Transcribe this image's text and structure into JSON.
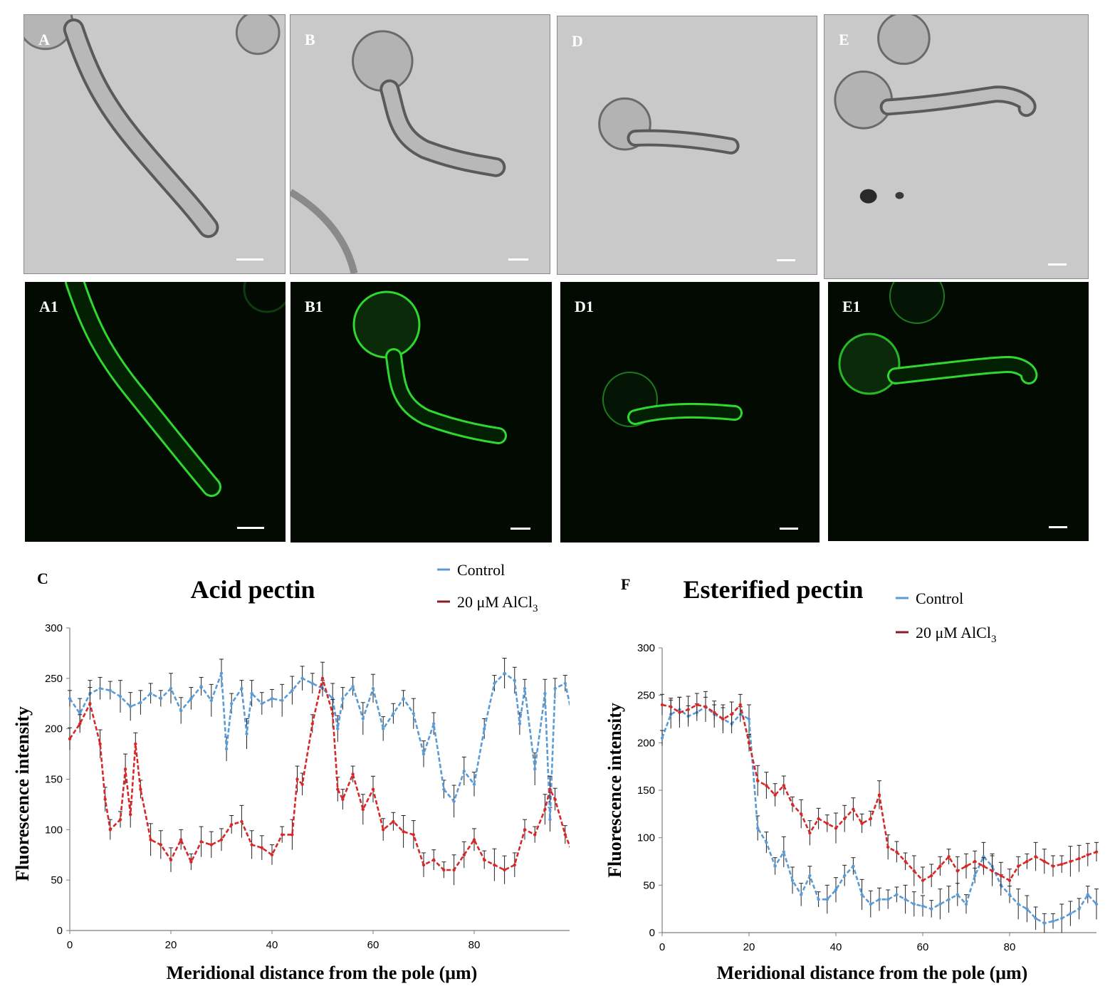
{
  "panels": {
    "brightfield": [
      {
        "label": "A",
        "name": "A"
      },
      {
        "label": "B",
        "name": "B"
      },
      {
        "label": "D",
        "name": "D"
      },
      {
        "label": "E",
        "name": "E"
      }
    ],
    "fluorescence": [
      {
        "label": "A1",
        "name": "A1"
      },
      {
        "label": "B1",
        "name": "B1"
      },
      {
        "label": "D1",
        "name": "D1"
      },
      {
        "label": "E1",
        "name": "E1"
      }
    ]
  },
  "colors": {
    "control": "#5b9bd5",
    "alcl3": "#d62828",
    "legend_alcl3": "#8b1a2b",
    "fluor_green": "#2ed82e"
  },
  "chart_data": [
    {
      "panel_label": "C",
      "type": "line",
      "title": "Acid pectin",
      "xlabel": "Meridional distance from the pole (μm)",
      "ylabel": "Fluorescence intensity",
      "xlim": [
        0,
        100
      ],
      "ylim": [
        0,
        300
      ],
      "xticks": [
        0,
        20,
        40,
        60,
        80
      ],
      "yticks": [
        0,
        50,
        100,
        150,
        200,
        250,
        300
      ],
      "legend_position": "top-right",
      "series": [
        {
          "name": "Control",
          "legend_label": "Control",
          "color": "#5b9bd5",
          "x": [
            0,
            2,
            4,
            6,
            8,
            10,
            12,
            14,
            16,
            18,
            20,
            22,
            24,
            26,
            28,
            30,
            31,
            32,
            34,
            35,
            36,
            38,
            40,
            42,
            44,
            46,
            48,
            50,
            52,
            53,
            54,
            56,
            58,
            60,
            62,
            64,
            66,
            68,
            70,
            72,
            74,
            76,
            78,
            80,
            82,
            84,
            86,
            88,
            89,
            90,
            92,
            94,
            95,
            96,
            98,
            100
          ],
          "y": [
            230,
            215,
            235,
            240,
            238,
            232,
            222,
            226,
            235,
            230,
            240,
            218,
            230,
            242,
            228,
            255,
            180,
            225,
            240,
            195,
            235,
            225,
            230,
            228,
            238,
            250,
            245,
            240,
            230,
            200,
            230,
            242,
            210,
            240,
            200,
            215,
            230,
            215,
            175,
            205,
            140,
            128,
            158,
            145,
            200,
            245,
            255,
            248,
            205,
            240,
            160,
            235,
            110,
            240,
            245,
            200
          ]
        },
        {
          "name": "20 μM AlCl3",
          "legend_label": "20 μM AlCl",
          "legend_sub": "3",
          "color": "#d62828",
          "x": [
            0,
            2,
            4,
            6,
            7,
            8,
            10,
            11,
            12,
            13,
            14,
            16,
            18,
            20,
            22,
            24,
            26,
            28,
            30,
            32,
            34,
            36,
            38,
            40,
            42,
            44,
            45,
            46,
            48,
            50,
            52,
            53,
            54,
            56,
            58,
            60,
            62,
            64,
            66,
            68,
            70,
            72,
            74,
            76,
            78,
            80,
            82,
            84,
            86,
            88,
            90,
            92,
            94,
            95,
            96,
            98,
            100
          ],
          "y": [
            190,
            205,
            225,
            185,
            130,
            100,
            110,
            160,
            115,
            185,
            140,
            90,
            85,
            70,
            90,
            68,
            88,
            85,
            90,
            105,
            108,
            85,
            82,
            75,
            95,
            95,
            150,
            145,
            205,
            250,
            215,
            140,
            130,
            155,
            120,
            140,
            100,
            108,
            98,
            95,
            65,
            70,
            60,
            60,
            75,
            90,
            70,
            65,
            60,
            65,
            100,
            95,
            120,
            140,
            130,
            95,
            70
          ]
        }
      ]
    },
    {
      "panel_label": "F",
      "type": "line",
      "title": "Esterified pectin",
      "xlabel": "Meridional distance from the pole (μm)",
      "ylabel": "Fluorescence intensity",
      "xlim": [
        0,
        100
      ],
      "ylim": [
        0,
        300
      ],
      "xticks": [
        0,
        20,
        40,
        60,
        80
      ],
      "yticks": [
        0,
        50,
        100,
        150,
        200,
        250,
        300
      ],
      "legend_position": "top-right",
      "series": [
        {
          "name": "Control",
          "legend_label": "Control",
          "color": "#5b9bd5",
          "x": [
            0,
            2,
            4,
            6,
            8,
            10,
            12,
            14,
            16,
            18,
            20,
            22,
            24,
            26,
            28,
            30,
            32,
            34,
            36,
            38,
            40,
            42,
            44,
            46,
            48,
            50,
            52,
            54,
            56,
            58,
            60,
            62,
            64,
            66,
            68,
            70,
            72,
            74,
            76,
            78,
            80,
            82,
            84,
            86,
            88,
            90,
            92,
            94,
            96,
            98,
            100
          ],
          "y": [
            205,
            230,
            235,
            228,
            232,
            238,
            230,
            225,
            220,
            230,
            225,
            110,
            95,
            70,
            85,
            55,
            40,
            60,
            35,
            35,
            45,
            60,
            70,
            40,
            30,
            35,
            35,
            40,
            35,
            30,
            28,
            25,
            30,
            35,
            40,
            30,
            60,
            80,
            70,
            50,
            40,
            30,
            25,
            15,
            10,
            12,
            15,
            20,
            25,
            40,
            30
          ]
        },
        {
          "name": "20 μM AlCl3",
          "legend_label": "20 μM AlCl",
          "legend_sub": "3",
          "color": "#d62828",
          "x": [
            0,
            2,
            4,
            6,
            8,
            10,
            12,
            14,
            16,
            18,
            20,
            22,
            24,
            26,
            28,
            30,
            32,
            34,
            36,
            38,
            40,
            42,
            44,
            46,
            48,
            50,
            52,
            54,
            56,
            58,
            60,
            62,
            64,
            66,
            68,
            70,
            72,
            74,
            76,
            78,
            80,
            82,
            84,
            86,
            88,
            90,
            92,
            94,
            96,
            98,
            100
          ],
          "y": [
            240,
            238,
            232,
            235,
            240,
            238,
            232,
            225,
            230,
            240,
            200,
            160,
            155,
            145,
            155,
            135,
            125,
            105,
            120,
            115,
            110,
            120,
            130,
            115,
            120,
            145,
            90,
            85,
            75,
            65,
            55,
            60,
            70,
            80,
            65,
            70,
            75,
            70,
            65,
            60,
            55,
            70,
            75,
            80,
            75,
            70,
            72,
            75,
            78,
            82,
            85
          ]
        }
      ]
    }
  ]
}
